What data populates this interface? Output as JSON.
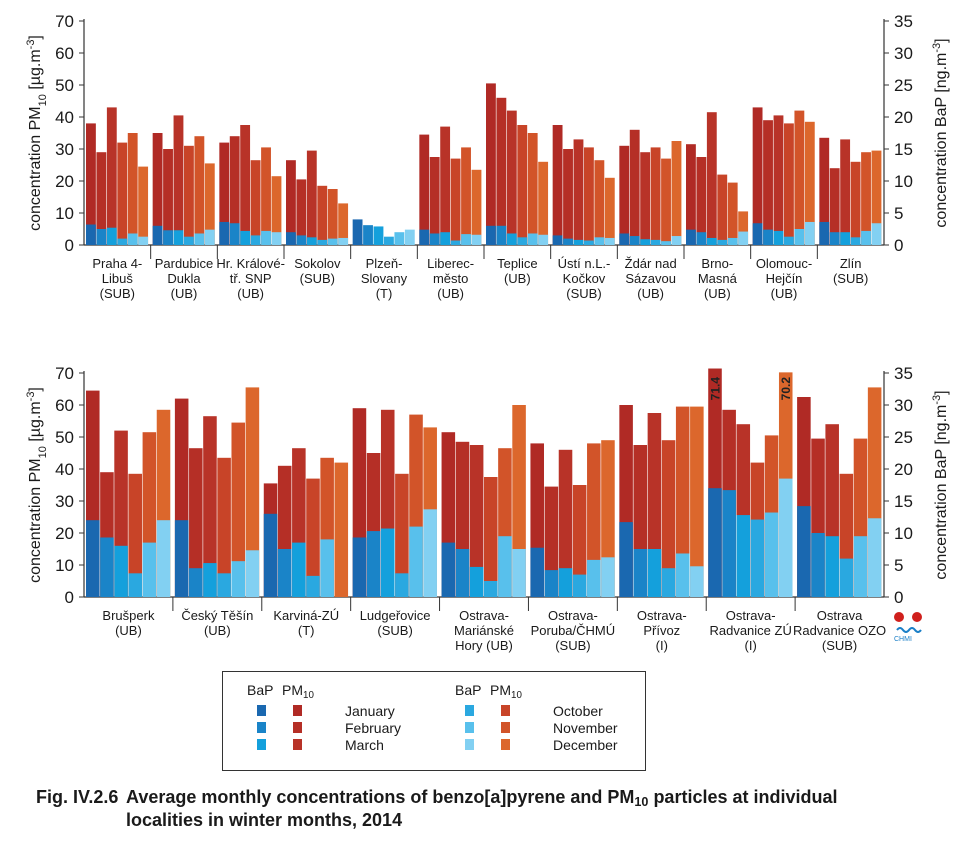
{
  "chart_data": [
    {
      "type": "bar",
      "ylabel": "concentration PM10 [µg.m-3]",
      "y2label": "concentration BaP [ng.m-3]",
      "ylim": [
        0,
        70
      ],
      "y2lim": [
        0,
        35
      ],
      "yticks": [
        0,
        10,
        20,
        30,
        40,
        50,
        60,
        70
      ],
      "y2ticks": [
        0,
        5,
        10,
        15,
        20,
        25,
        30,
        35
      ],
      "months": [
        "January",
        "February",
        "March",
        "October",
        "November",
        "December"
      ],
      "stations": [
        {
          "label": [
            "Praha 4-",
            "Libuš",
            "(SUB)"
          ],
          "pm10": [
            38,
            29,
            43,
            32,
            35,
            24.5
          ],
          "bap": [
            3.2,
            2.5,
            2.7,
            1.0,
            1.8,
            1.3
          ]
        },
        {
          "label": [
            "Pardubice",
            "Dukla",
            "(UB)"
          ],
          "pm10": [
            35,
            30,
            40.5,
            31,
            34,
            25.5
          ],
          "bap": [
            3.0,
            2.3,
            2.3,
            1.3,
            1.8,
            2.4
          ]
        },
        {
          "label": [
            "Hr. Králové-",
            "tř. SNP",
            "(UB)"
          ],
          "pm10": [
            32,
            34,
            37.5,
            26.5,
            30.5,
            21.5
          ],
          "bap": [
            3.6,
            3.4,
            2.2,
            1.5,
            2.2,
            2.0
          ]
        },
        {
          "label": [
            "Sokolov",
            "(SUB)"
          ],
          "pm10": [
            26.5,
            20.5,
            29.5,
            18.5,
            17.5,
            13
          ],
          "bap": [
            2.0,
            1.5,
            1.2,
            0.8,
            1.0,
            1.1
          ]
        },
        {
          "label": [
            "Plzeň-",
            "Slovany",
            "(T)"
          ],
          "pm10": [
            null,
            null,
            null,
            null,
            null,
            null
          ],
          "bap": [
            4.0,
            3.1,
            2.9,
            1.3,
            2.0,
            2.4
          ]
        },
        {
          "label": [
            "Liberec-",
            "město",
            "(UB)"
          ],
          "pm10": [
            34.5,
            27.5,
            37,
            27,
            30.5,
            23.5
          ],
          "bap": [
            2.4,
            1.8,
            2.0,
            0.7,
            1.7,
            1.6
          ]
        },
        {
          "label": [
            "Teplice",
            "(UB)"
          ],
          "pm10": [
            50.5,
            46,
            42,
            37.5,
            35,
            26
          ],
          "bap": [
            3.0,
            3.0,
            1.8,
            1.2,
            1.8,
            1.6
          ]
        },
        {
          "label": [
            "Ústí n.L.-",
            "Kočkov",
            "(SUB)"
          ],
          "pm10": [
            37.5,
            30,
            33,
            30.5,
            26.5,
            21
          ],
          "bap": [
            1.5,
            1.0,
            0.8,
            0.7,
            1.2,
            1.1
          ]
        },
        {
          "label": [
            "Ždár nad",
            "Sázavou",
            "(UB)"
          ],
          "pm10": [
            31,
            36,
            29,
            30.5,
            27,
            32.5
          ],
          "bap": [
            1.8,
            1.4,
            0.9,
            0.8,
            0.6,
            1.4
          ]
        },
        {
          "label": [
            "Brno-",
            "Masná",
            "(UB)"
          ],
          "pm10": [
            31.5,
            27.5,
            41.5,
            22,
            19.5,
            10.5
          ],
          "bap": [
            2.4,
            2.0,
            1.1,
            0.8,
            1.1,
            2.1
          ]
        },
        {
          "label": [
            "Olomouc-",
            "Hejčín",
            "(UB)"
          ],
          "pm10": [
            43,
            39,
            40.5,
            38,
            42,
            38.5
          ],
          "bap": [
            3.4,
            2.4,
            2.2,
            1.3,
            2.5,
            3.6
          ]
        },
        {
          "label": [
            "Zlín",
            "(SUB)"
          ],
          "pm10": [
            33.5,
            24,
            33,
            26,
            29,
            29.5
          ],
          "bap": [
            3.6,
            2.0,
            2.0,
            1.2,
            2.2,
            3.4
          ]
        }
      ]
    },
    {
      "type": "bar",
      "ylabel": "concentration PM10 [µg.m-3]",
      "y2label": "concentration BaP [ng.m-3]",
      "ylim": [
        0,
        70
      ],
      "y2lim": [
        0,
        35
      ],
      "yticks": [
        0,
        10,
        20,
        30,
        40,
        50,
        60,
        70
      ],
      "y2ticks": [
        0,
        5,
        10,
        15,
        20,
        25,
        30,
        35
      ],
      "months": [
        "January",
        "February",
        "March",
        "October",
        "November",
        "December"
      ],
      "stations": [
        {
          "label": [
            "Brušperk",
            "(UB)"
          ],
          "pm10": [
            64.5,
            39,
            52,
            38.5,
            51.5,
            58.5
          ],
          "bap": [
            12.0,
            9.3,
            8.0,
            3.7,
            8.5,
            12.0
          ]
        },
        {
          "label": [
            "Český Těšín",
            "(UB)"
          ],
          "pm10": [
            62,
            46.5,
            56.5,
            43.5,
            54.5,
            65.5
          ],
          "bap": [
            12.0,
            4.5,
            5.3,
            3.7,
            5.6,
            7.3
          ]
        },
        {
          "label": [
            "Karviná-ZÚ",
            "(T)"
          ],
          "pm10": [
            35.5,
            41,
            46.5,
            37,
            43.5,
            42
          ],
          "bap": [
            13.0,
            7.5,
            8.5,
            3.3,
            9.0,
            null
          ]
        },
        {
          "label": [
            "Ludgeřovice",
            "(SUB)"
          ],
          "pm10": [
            59,
            45,
            58.5,
            38.5,
            57,
            53
          ],
          "bap": [
            9.3,
            10.3,
            10.7,
            3.7,
            11.0,
            13.7
          ]
        },
        {
          "label": [
            "Ostrava-",
            "Mariánské",
            "Hory (UB)"
          ],
          "pm10": [
            51.5,
            48.5,
            47.5,
            37.5,
            46.5,
            60
          ],
          "bap": [
            8.5,
            7.5,
            4.7,
            2.5,
            9.5,
            7.5
          ]
        },
        {
          "label": [
            "Ostrava-",
            "Poruba/ČHMÚ",
            "(SUB)"
          ],
          "pm10": [
            48,
            34.5,
            46,
            35,
            48,
            49
          ],
          "bap": [
            7.7,
            4.2,
            4.5,
            3.5,
            5.8,
            6.2
          ]
        },
        {
          "label": [
            "Ostrava-",
            "Přívoz",
            "(I)"
          ],
          "pm10": [
            60,
            47.5,
            57.5,
            49,
            59.5,
            59.5
          ],
          "bap": [
            11.7,
            7.5,
            7.5,
            4.5,
            6.8,
            4.8
          ]
        },
        {
          "label": [
            "Ostrava-",
            "Radvanice ZÚ",
            "(I)"
          ],
          "pm10": [
            71.4,
            58.5,
            54,
            42,
            50.5,
            70.2
          ],
          "bap": [
            17.0,
            16.7,
            12.8,
            12.1,
            13.2,
            18.5
          ]
        },
        {
          "label": [
            "Ostrava",
            "Radvanice OZO",
            "(SUB)"
          ],
          "pm10": [
            62.5,
            49.5,
            54,
            38.5,
            49.5,
            65.5
          ],
          "bap": [
            14.2,
            10.0,
            9.5,
            6.0,
            9.5,
            12.3
          ]
        }
      ],
      "annotations": [
        {
          "station_index": 7,
          "month": "January",
          "text": "71.4"
        },
        {
          "station_index": 7,
          "month": "December",
          "text": "70.2"
        }
      ]
    }
  ],
  "colors": {
    "bap": [
      "#1a68b0",
      "#1a84c8",
      "#14a0dc",
      "#2aa8e0",
      "#58c0ec",
      "#82d0f2"
    ],
    "pm10": [
      "#b02a25",
      "#b52f26",
      "#b83328",
      "#c84428",
      "#d25429",
      "#dc672c"
    ],
    "axis": "#333333"
  },
  "legend": {
    "bap_header": "BaP",
    "pm10_header_main": "PM",
    "pm10_header_sub": "10",
    "items": [
      "January",
      "February",
      "March",
      "October",
      "November",
      "December"
    ]
  },
  "caption": {
    "number": "Fig. IV.2.6",
    "text_a": "Average monthly concentrations of benzo[a]pyrene and PM",
    "text_sub": "10",
    "text_b": " particles at individual",
    "line2": "localities in winter months, 2014"
  },
  "logo": {
    "text": "CHMI",
    "icon": "chmi-logo-icon"
  }
}
